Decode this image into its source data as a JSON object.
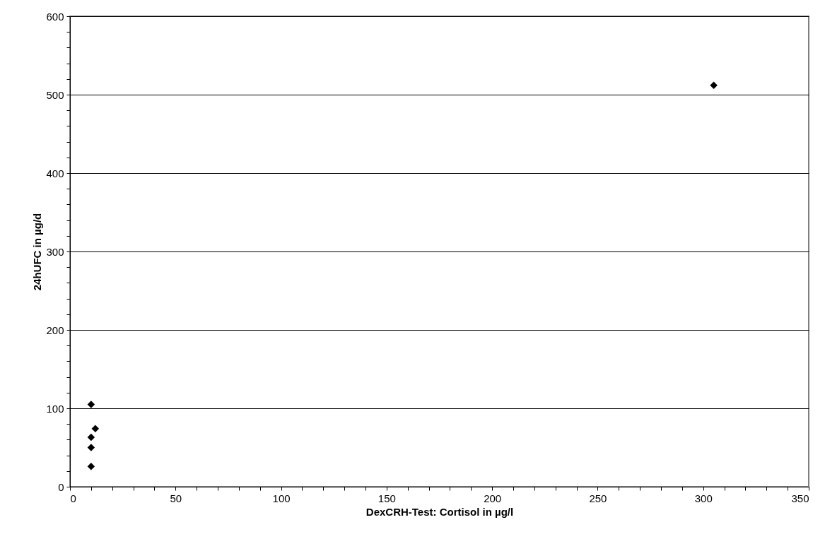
{
  "chart_data": {
    "type": "scatter",
    "xlabel": "DexCRH-Test: Cortisol in µg/l",
    "ylabel": "24hUFC in µg/d",
    "x": [
      10,
      12,
      10,
      10,
      10,
      305
    ],
    "series": [
      {
        "color": "#000000",
        "values": [
          105,
          74,
          63,
          50,
          26,
          512
        ]
      }
    ],
    "xlim": [
      0,
      350
    ],
    "ylim": [
      0,
      600
    ],
    "xticks": [
      0,
      {
        "value": 10,
        "label": null
      },
      {
        "value": 20,
        "label": null
      },
      {
        "value": 30,
        "label": null
      },
      {
        "value": 40,
        "label": null
      },
      50,
      {
        "value": 60,
        "label": null
      },
      {
        "value": 70,
        "label": null
      },
      {
        "value": 80,
        "label": null
      },
      {
        "value": 90,
        "label": null
      },
      100,
      {
        "value": 110,
        "label": null
      },
      {
        "value": 120,
        "label": null
      },
      {
        "value": 130,
        "label": null
      },
      {
        "value": 140,
        "label": null
      },
      150,
      {
        "value": 160,
        "label": null
      },
      {
        "value": 170,
        "label": null
      },
      {
        "value": 180,
        "label": null
      },
      {
        "value": 190,
        "label": null
      },
      200,
      {
        "value": 210,
        "label": null
      },
      {
        "value": 220,
        "label": null
      },
      {
        "value": 230,
        "label": null
      },
      {
        "value": 240,
        "label": null
      },
      250,
      {
        "value": 260,
        "label": null
      },
      {
        "value": 270,
        "label": null
      },
      {
        "value": 280,
        "label": null
      },
      {
        "value": 290,
        "label": null
      },
      300,
      {
        "value": 310,
        "label": null
      },
      {
        "value": 320,
        "label": null
      },
      {
        "value": 330,
        "label": null
      },
      {
        "value": 340,
        "label": null
      },
      350
    ],
    "yticks": [
      0,
      {
        "value": 20,
        "label": null
      },
      {
        "value": 40,
        "label": null
      },
      {
        "value": 60,
        "label": null
      },
      {
        "value": 80,
        "label": null
      },
      100,
      {
        "value": 120,
        "label": null
      },
      {
        "value": 140,
        "label": null
      },
      {
        "value": 160,
        "label": null
      },
      {
        "value": 180,
        "label": null
      },
      200,
      {
        "value": 220,
        "label": null
      },
      {
        "value": 240,
        "label": null
      },
      {
        "value": 260,
        "label": null
      },
      {
        "value": 280,
        "label": null
      },
      300,
      {
        "value": 320,
        "label": null
      },
      {
        "value": 340,
        "label": null
      },
      {
        "value": 360,
        "label": null
      },
      {
        "value": 380,
        "label": null
      },
      400,
      {
        "value": 420,
        "label": null
      },
      {
        "value": 440,
        "label": null
      },
      {
        "value": 460,
        "label": null
      },
      {
        "value": 480,
        "label": null
      },
      500,
      {
        "value": 520,
        "label": null
      },
      {
        "value": 540,
        "label": null
      },
      {
        "value": 560,
        "label": null
      },
      {
        "value": 580,
        "label": null
      },
      600
    ],
    "grid": "y",
    "marker": "diamond"
  }
}
